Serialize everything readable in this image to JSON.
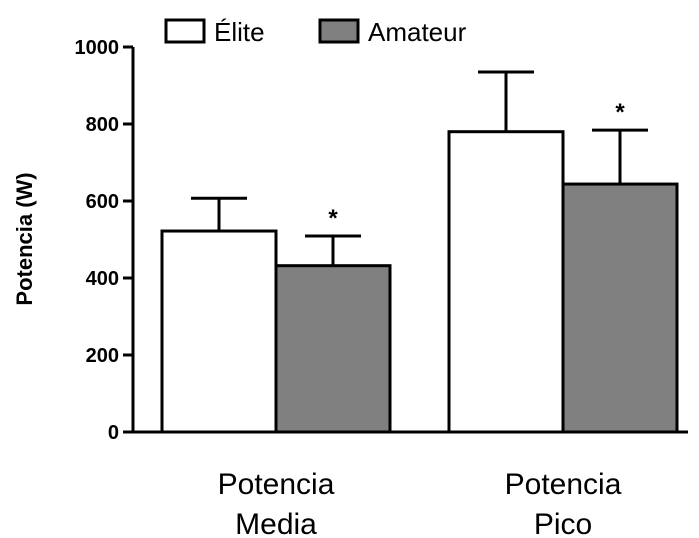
{
  "chart_data": {
    "type": "bar",
    "categories": [
      "Potencia Media",
      "Potencia Pico"
    ],
    "category_lines": [
      [
        "Potencia",
        "Media"
      ],
      [
        "Potencia",
        "Pico"
      ]
    ],
    "series": [
      {
        "name": "Élite",
        "values": [
          522,
          780
        ],
        "error": [
          85,
          155
        ],
        "color": "#ffffff"
      },
      {
        "name": "Amateur",
        "values": [
          432,
          644
        ],
        "error": [
          77,
          140
        ],
        "color": "#808080"
      }
    ],
    "significance": [
      {
        "series": 1,
        "category": 0,
        "label": "*"
      },
      {
        "series": 1,
        "category": 1,
        "label": "*"
      }
    ],
    "ylabel": "Potencia (W)",
    "xlabel": "",
    "ylim": [
      0,
      1000
    ],
    "yticks": [
      0,
      200,
      400,
      600,
      800,
      1000
    ],
    "legend": "top",
    "grid": false
  }
}
